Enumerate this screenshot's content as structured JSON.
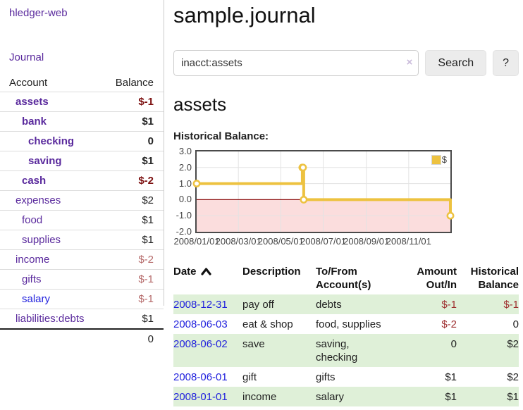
{
  "colors": {
    "link_purple": "#5a2a9d",
    "link_blue": "#2222dd",
    "neg_strong": "#7c1010",
    "neg_muted": "#b56a6a",
    "neg": "#9e2f2f",
    "row_green": "#dff0d8",
    "chart_gold": "#edc240",
    "chart_negative_bg": "#fbdddd",
    "chart_zero_line": "#8f1212",
    "chart_grid": "#e3e3e3"
  },
  "sidebar": {
    "app_title": "hledger-web",
    "nav_journal": "Journal",
    "accounts_header": {
      "account": "Account",
      "balance": "Balance"
    },
    "accounts": [
      {
        "name": "assets",
        "depth": 1,
        "bold": true,
        "link_color": "purple",
        "balance": "$-1",
        "balance_style": "neg-strong"
      },
      {
        "name": "bank",
        "depth": 2,
        "bold": true,
        "link_color": "purple",
        "balance": "$1",
        "balance_style": "plain"
      },
      {
        "name": "checking",
        "depth": 3,
        "bold": true,
        "link_color": "purple",
        "balance": "0",
        "balance_style": "plain"
      },
      {
        "name": "saving",
        "depth": 3,
        "bold": true,
        "link_color": "purple",
        "balance": "$1",
        "balance_style": "plain"
      },
      {
        "name": "cash",
        "depth": 2,
        "bold": true,
        "link_color": "purple",
        "balance": "$-2",
        "balance_style": "neg-strong"
      },
      {
        "name": "expenses",
        "depth": 1,
        "bold": false,
        "link_color": "purple",
        "balance": "$2",
        "balance_style": "plain"
      },
      {
        "name": "food",
        "depth": 2,
        "bold": false,
        "link_color": "purple",
        "balance": "$1",
        "balance_style": "plain"
      },
      {
        "name": "supplies",
        "depth": 2,
        "bold": false,
        "link_color": "purple",
        "balance": "$1",
        "balance_style": "plain"
      },
      {
        "name": "income",
        "depth": 1,
        "bold": false,
        "link_color": "purple",
        "balance": "$-2",
        "balance_style": "neg-muted"
      },
      {
        "name": "gifts",
        "depth": 2,
        "bold": false,
        "link_color": "purple",
        "balance": "$-1",
        "balance_style": "neg-muted"
      },
      {
        "name": "salary",
        "depth": 2,
        "bold": false,
        "link_color": "blue",
        "balance": "$-1",
        "balance_style": "neg-muted"
      },
      {
        "name": "liabilities:debts",
        "depth": 1,
        "bold": false,
        "link_color": "purple",
        "balance": "$1",
        "balance_style": "plain"
      }
    ],
    "total": "0"
  },
  "header": {
    "title": "sample.journal"
  },
  "search": {
    "query": "inacct:assets",
    "clear_icon": "×",
    "search_label": "Search",
    "help_label": "?"
  },
  "account_page": {
    "heading": "assets",
    "chart_label": "Historical Balance:"
  },
  "chart_data": {
    "type": "line",
    "subtype": "step",
    "title": "Historical Balance of assets",
    "series": [
      {
        "name": "$",
        "points": [
          [
            "2008-01-01",
            1
          ],
          [
            "2008-06-01",
            2
          ],
          [
            "2008-06-02",
            2
          ],
          [
            "2008-06-03",
            0
          ],
          [
            "2008-12-31",
            -1
          ]
        ]
      }
    ],
    "x_start": "2008-01-01",
    "x_end": "2008-12-31",
    "ylim": [
      -2,
      3
    ],
    "y_ticks": [
      "3.0",
      "2.0",
      "1.0",
      "0.0",
      "-1.0",
      "-2.0"
    ],
    "x_ticks": [
      {
        "label": "2008/01/01",
        "date": "2008-01-01"
      },
      {
        "label": "2008/03/01",
        "date": "2008-03-01"
      },
      {
        "label": "2008/05/01",
        "date": "2008-05-01"
      },
      {
        "label": "2008/07/01",
        "date": "2008-07-01"
      },
      {
        "label": "2008/09/01",
        "date": "2008-09-01"
      },
      {
        "label": "2008/11/01",
        "date": "2008-11-01"
      }
    ],
    "legend": {
      "label": "$",
      "position": "top-right"
    },
    "grid": true,
    "negative_region_shaded": true
  },
  "register": {
    "headers": [
      "Date",
      "Description",
      "To/From\nAccount(s)",
      "Amount\nOut/In",
      "Historical\nBalance"
    ],
    "sort": "date-ascending",
    "rows": [
      {
        "date": "2008-12-31",
        "description": "pay off",
        "accounts": "debts",
        "amount": "$-1",
        "balance": "$-1"
      },
      {
        "date": "2008-06-03",
        "description": "eat & shop",
        "accounts": "food, supplies",
        "amount": "$-2",
        "balance": "0"
      },
      {
        "date": "2008-06-02",
        "description": "save",
        "accounts": "saving, checking",
        "amount": "0",
        "balance": "$2"
      },
      {
        "date": "2008-06-01",
        "description": "gift",
        "accounts": "gifts",
        "amount": "$1",
        "balance": "$2"
      },
      {
        "date": "2008-01-01",
        "description": "income",
        "accounts": "salary",
        "amount": "$1",
        "balance": "$1"
      }
    ]
  }
}
